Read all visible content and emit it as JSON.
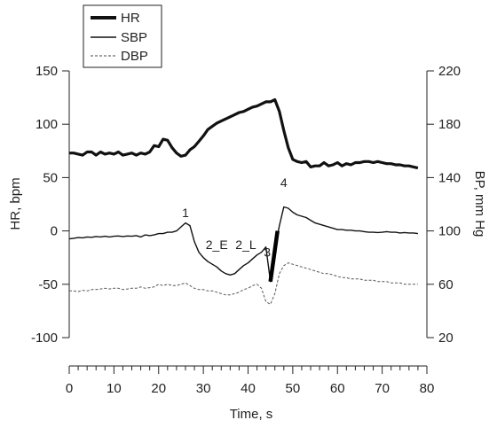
{
  "chart_data": {
    "type": "line",
    "xlabel": "Time, s",
    "ylabel_left": "HR, bpm",
    "ylabel_right": "BP, mm Hg",
    "xlim": [
      0,
      80
    ],
    "ylim_left": [
      -100,
      150
    ],
    "ylim_right": [
      20,
      220
    ],
    "x_ticks": [
      0,
      10,
      20,
      30,
      40,
      50,
      60,
      70,
      80
    ],
    "y_ticks_left": [
      -100,
      -50,
      0,
      50,
      100,
      150
    ],
    "y_ticks_right": [
      20,
      60,
      100,
      140,
      180,
      220
    ],
    "grid": false,
    "legend_position": "top-left",
    "legend": [
      "HR",
      "SBP",
      "DBP"
    ],
    "series": [
      {
        "name": "HR",
        "axis": "left",
        "style": "thick-solid",
        "x": [
          0,
          1,
          2,
          3,
          4,
          5,
          6,
          7,
          8,
          9,
          10,
          11,
          12,
          13,
          14,
          15,
          16,
          17,
          18,
          19,
          20,
          21,
          22,
          23,
          24,
          25,
          26,
          27,
          28,
          29,
          30,
          31,
          32,
          33,
          34,
          35,
          36,
          37,
          38,
          39,
          40,
          41,
          42,
          43,
          44,
          45,
          46,
          47,
          48,
          49,
          50,
          51,
          52,
          53,
          54,
          55,
          56,
          57,
          58,
          59,
          60,
          61,
          62,
          63,
          64,
          65,
          66,
          67,
          68,
          69,
          70,
          71,
          72,
          73,
          74,
          75,
          76,
          77,
          78
        ],
        "y": [
          73,
          73,
          72,
          71,
          74,
          74,
          71,
          74,
          72,
          73,
          72,
          74,
          71,
          72,
          73,
          71,
          73,
          72,
          74,
          80,
          79,
          86,
          85,
          78,
          73,
          70,
          71,
          76,
          79,
          84,
          89,
          95,
          98,
          101,
          103,
          105,
          107,
          109,
          111,
          112,
          114,
          116,
          117,
          119,
          121,
          121,
          123,
          112,
          94,
          78,
          67,
          65,
          64,
          65,
          60,
          61,
          61,
          64,
          61,
          62,
          64,
          61,
          63,
          62,
          64,
          64,
          65,
          65,
          64,
          65,
          64,
          63,
          63,
          62,
          62,
          61,
          61,
          60,
          59
        ]
      },
      {
        "name": "SBP",
        "axis": "right",
        "style": "solid",
        "x": [
          0,
          1,
          2,
          3,
          4,
          5,
          6,
          7,
          8,
          9,
          10,
          11,
          12,
          13,
          14,
          15,
          16,
          17,
          18,
          19,
          20,
          21,
          22,
          23,
          24,
          25,
          26,
          27,
          28,
          29,
          30,
          31,
          32,
          33,
          34,
          35,
          36,
          37,
          38,
          39,
          40,
          41,
          42,
          43,
          44,
          45,
          46,
          47,
          48,
          49,
          50,
          51,
          52,
          53,
          54,
          55,
          56,
          57,
          58,
          59,
          60,
          61,
          62,
          63,
          64,
          65,
          66,
          67,
          68,
          69,
          70,
          71,
          72,
          73,
          74,
          75,
          76,
          77,
          78
        ],
        "y": [
          94,
          94.5,
          95,
          94.8,
          95.5,
          95.2,
          95.8,
          95.5,
          96,
          95.5,
          96,
          96.2,
          95.8,
          96.2,
          96,
          96.5,
          95.5,
          97,
          96.5,
          97,
          98,
          98,
          99,
          99,
          100,
          103,
          106,
          104,
          92,
          84,
          80,
          77,
          75,
          73,
          70,
          68,
          67,
          68,
          71,
          74,
          76,
          79,
          82,
          84,
          88,
          62,
          86,
          104,
          118,
          117,
          114,
          112,
          111,
          110,
          108,
          106,
          105,
          104,
          103,
          102,
          101,
          101,
          100.5,
          100.5,
          100,
          100,
          99.5,
          99,
          99,
          98.8,
          99,
          99.5,
          99,
          99,
          98.5,
          98.8,
          98.5,
          98.5,
          98
        ]
      },
      {
        "name": "DBP",
        "axis": "right",
        "style": "dashed",
        "x": [
          0,
          1,
          2,
          3,
          4,
          5,
          6,
          7,
          8,
          9,
          10,
          11,
          12,
          13,
          14,
          15,
          16,
          17,
          18,
          19,
          20,
          21,
          22,
          23,
          24,
          25,
          26,
          27,
          28,
          29,
          30,
          31,
          32,
          33,
          34,
          35,
          36,
          37,
          38,
          39,
          40,
          41,
          42,
          43,
          44,
          45,
          46,
          47,
          48,
          49,
          50,
          51,
          52,
          53,
          54,
          55,
          56,
          57,
          58,
          59,
          60,
          61,
          62,
          63,
          64,
          65,
          66,
          67,
          68,
          69,
          70,
          71,
          72,
          73,
          74,
          75,
          76,
          77,
          78
        ],
        "y": [
          55,
          55,
          54.5,
          55.5,
          55,
          56,
          56,
          56.5,
          57,
          56.5,
          57,
          57,
          56,
          56.5,
          57,
          57,
          58,
          57,
          57.5,
          58,
          60,
          59,
          60,
          59,
          59,
          60,
          61,
          59,
          57,
          56,
          56,
          55,
          55,
          54,
          53,
          52,
          52,
          53,
          54,
          56,
          57,
          59,
          60,
          57,
          47,
          45,
          53,
          68,
          74,
          76,
          75,
          74,
          73,
          72,
          71,
          70,
          69,
          68,
          68,
          67,
          66,
          65,
          65,
          64,
          64,
          64,
          63,
          63,
          63,
          62,
          62,
          62,
          61,
          61,
          61,
          60,
          60,
          60,
          60
        ]
      },
      {
        "name": "",
        "axis": "right",
        "style": "very-thick-solid",
        "x": [
          45,
          46.6
        ],
        "y": [
          62,
          100
        ]
      }
    ],
    "annotations": [
      {
        "text": "1",
        "x": 26,
        "y": 13
      },
      {
        "text": "2_E",
        "x": 33,
        "y": -17
      },
      {
        "text": "2_L",
        "x": 39.5,
        "y": -17
      },
      {
        "text": "3",
        "x": 44.3,
        "y": -24
      },
      {
        "text": "4",
        "x": 48,
        "y": 41
      }
    ]
  }
}
